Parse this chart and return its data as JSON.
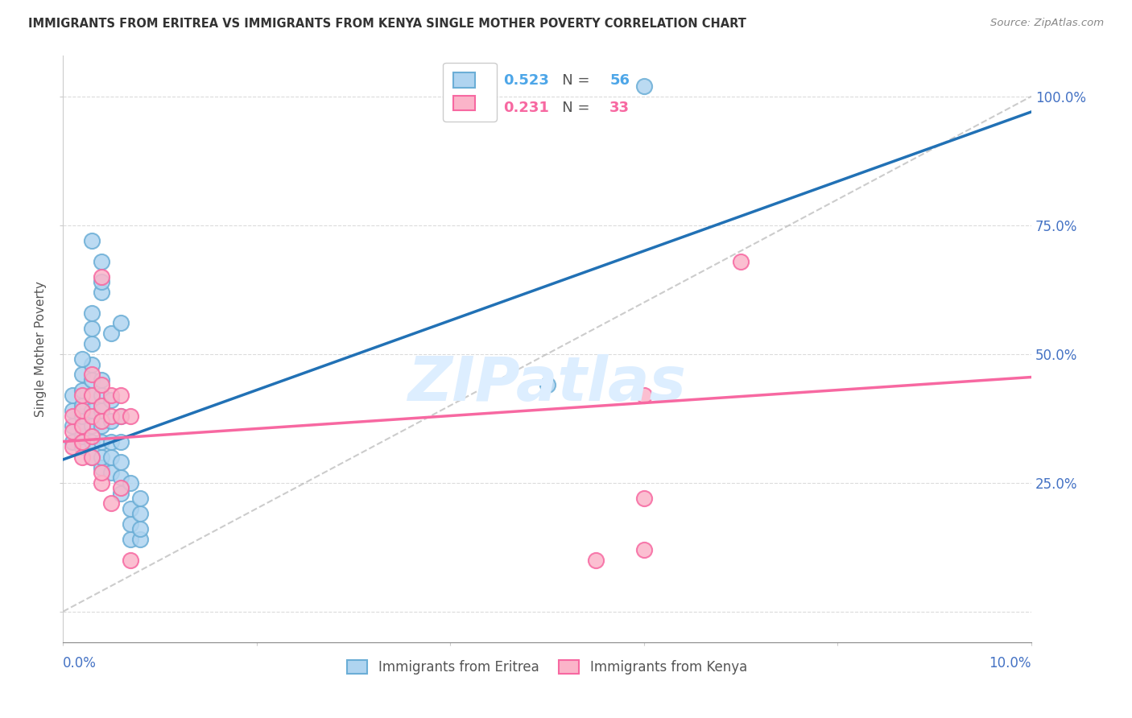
{
  "title": "IMMIGRANTS FROM ERITREA VS IMMIGRANTS FROM KENYA SINGLE MOTHER POVERTY CORRELATION CHART",
  "source": "Source: ZipAtlas.com",
  "ylabel": "Single Mother Poverty",
  "xmin": 0.0,
  "xmax": 0.1,
  "ymin": -0.06,
  "ymax": 1.08,
  "background_color": "#ffffff",
  "blue_scatter_x": [
    0.001,
    0.001,
    0.001,
    0.001,
    0.002,
    0.002,
    0.002,
    0.002,
    0.002,
    0.002,
    0.002,
    0.003,
    0.003,
    0.003,
    0.003,
    0.003,
    0.003,
    0.003,
    0.003,
    0.003,
    0.004,
    0.004,
    0.004,
    0.004,
    0.004,
    0.004,
    0.004,
    0.005,
    0.005,
    0.005,
    0.005,
    0.005,
    0.006,
    0.006,
    0.006,
    0.006,
    0.007,
    0.007,
    0.007,
    0.008,
    0.008,
    0.008,
    0.004,
    0.004,
    0.004,
    0.003,
    0.005,
    0.006,
    0.06,
    0.05,
    0.006,
    0.007,
    0.008,
    0.002,
    0.003
  ],
  "blue_scatter_y": [
    0.33,
    0.36,
    0.39,
    0.42,
    0.32,
    0.34,
    0.36,
    0.38,
    0.4,
    0.43,
    0.46,
    0.3,
    0.33,
    0.36,
    0.39,
    0.42,
    0.45,
    0.48,
    0.52,
    0.55,
    0.28,
    0.3,
    0.33,
    0.36,
    0.39,
    0.42,
    0.45,
    0.27,
    0.3,
    0.33,
    0.37,
    0.41,
    0.26,
    0.29,
    0.33,
    0.38,
    0.14,
    0.17,
    0.2,
    0.14,
    0.16,
    0.19,
    0.68,
    0.62,
    0.64,
    0.72,
    0.54,
    0.56,
    1.02,
    0.44,
    0.23,
    0.25,
    0.22,
    0.49,
    0.58
  ],
  "pink_scatter_x": [
    0.001,
    0.001,
    0.001,
    0.002,
    0.002,
    0.002,
    0.002,
    0.002,
    0.003,
    0.003,
    0.003,
    0.003,
    0.003,
    0.004,
    0.004,
    0.004,
    0.004,
    0.004,
    0.005,
    0.005,
    0.005,
    0.006,
    0.006,
    0.006,
    0.007,
    0.007,
    0.06,
    0.07,
    0.06,
    0.06,
    0.055,
    0.004
  ],
  "pink_scatter_y": [
    0.32,
    0.35,
    0.38,
    0.3,
    0.33,
    0.36,
    0.39,
    0.42,
    0.3,
    0.34,
    0.38,
    0.42,
    0.46,
    0.65,
    0.37,
    0.4,
    0.25,
    0.27,
    0.38,
    0.42,
    0.21,
    0.38,
    0.42,
    0.24,
    0.38,
    0.1,
    0.42,
    0.68,
    0.22,
    0.12,
    0.1,
    0.44
  ],
  "blue_line_x": [
    0.0,
    0.1
  ],
  "blue_line_y": [
    0.295,
    0.97
  ],
  "pink_line_x": [
    0.0,
    0.1
  ],
  "pink_line_y": [
    0.33,
    0.455
  ],
  "ref_line_x": [
    0.0,
    0.1
  ],
  "ref_line_y": [
    0.0,
    1.0
  ],
  "dot_size": 190,
  "blue_face": "#afd4f0",
  "blue_edge": "#6baed6",
  "pink_face": "#fbb4c9",
  "pink_edge": "#f768a1",
  "blue_line_color": "#2171b5",
  "pink_line_color": "#f768a1",
  "blue_val_color": "#4da6e8",
  "pink_val_color": "#f768a1",
  "grid_color": "#cccccc",
  "right_yticks": [
    0.0,
    0.25,
    0.5,
    0.75,
    1.0
  ],
  "right_yticklabels": [
    "",
    "25.0%",
    "50.0%",
    "75.0%",
    "100.0%"
  ],
  "r_blue": "0.523",
  "n_blue": "56",
  "r_pink": "0.231",
  "n_pink": "33"
}
